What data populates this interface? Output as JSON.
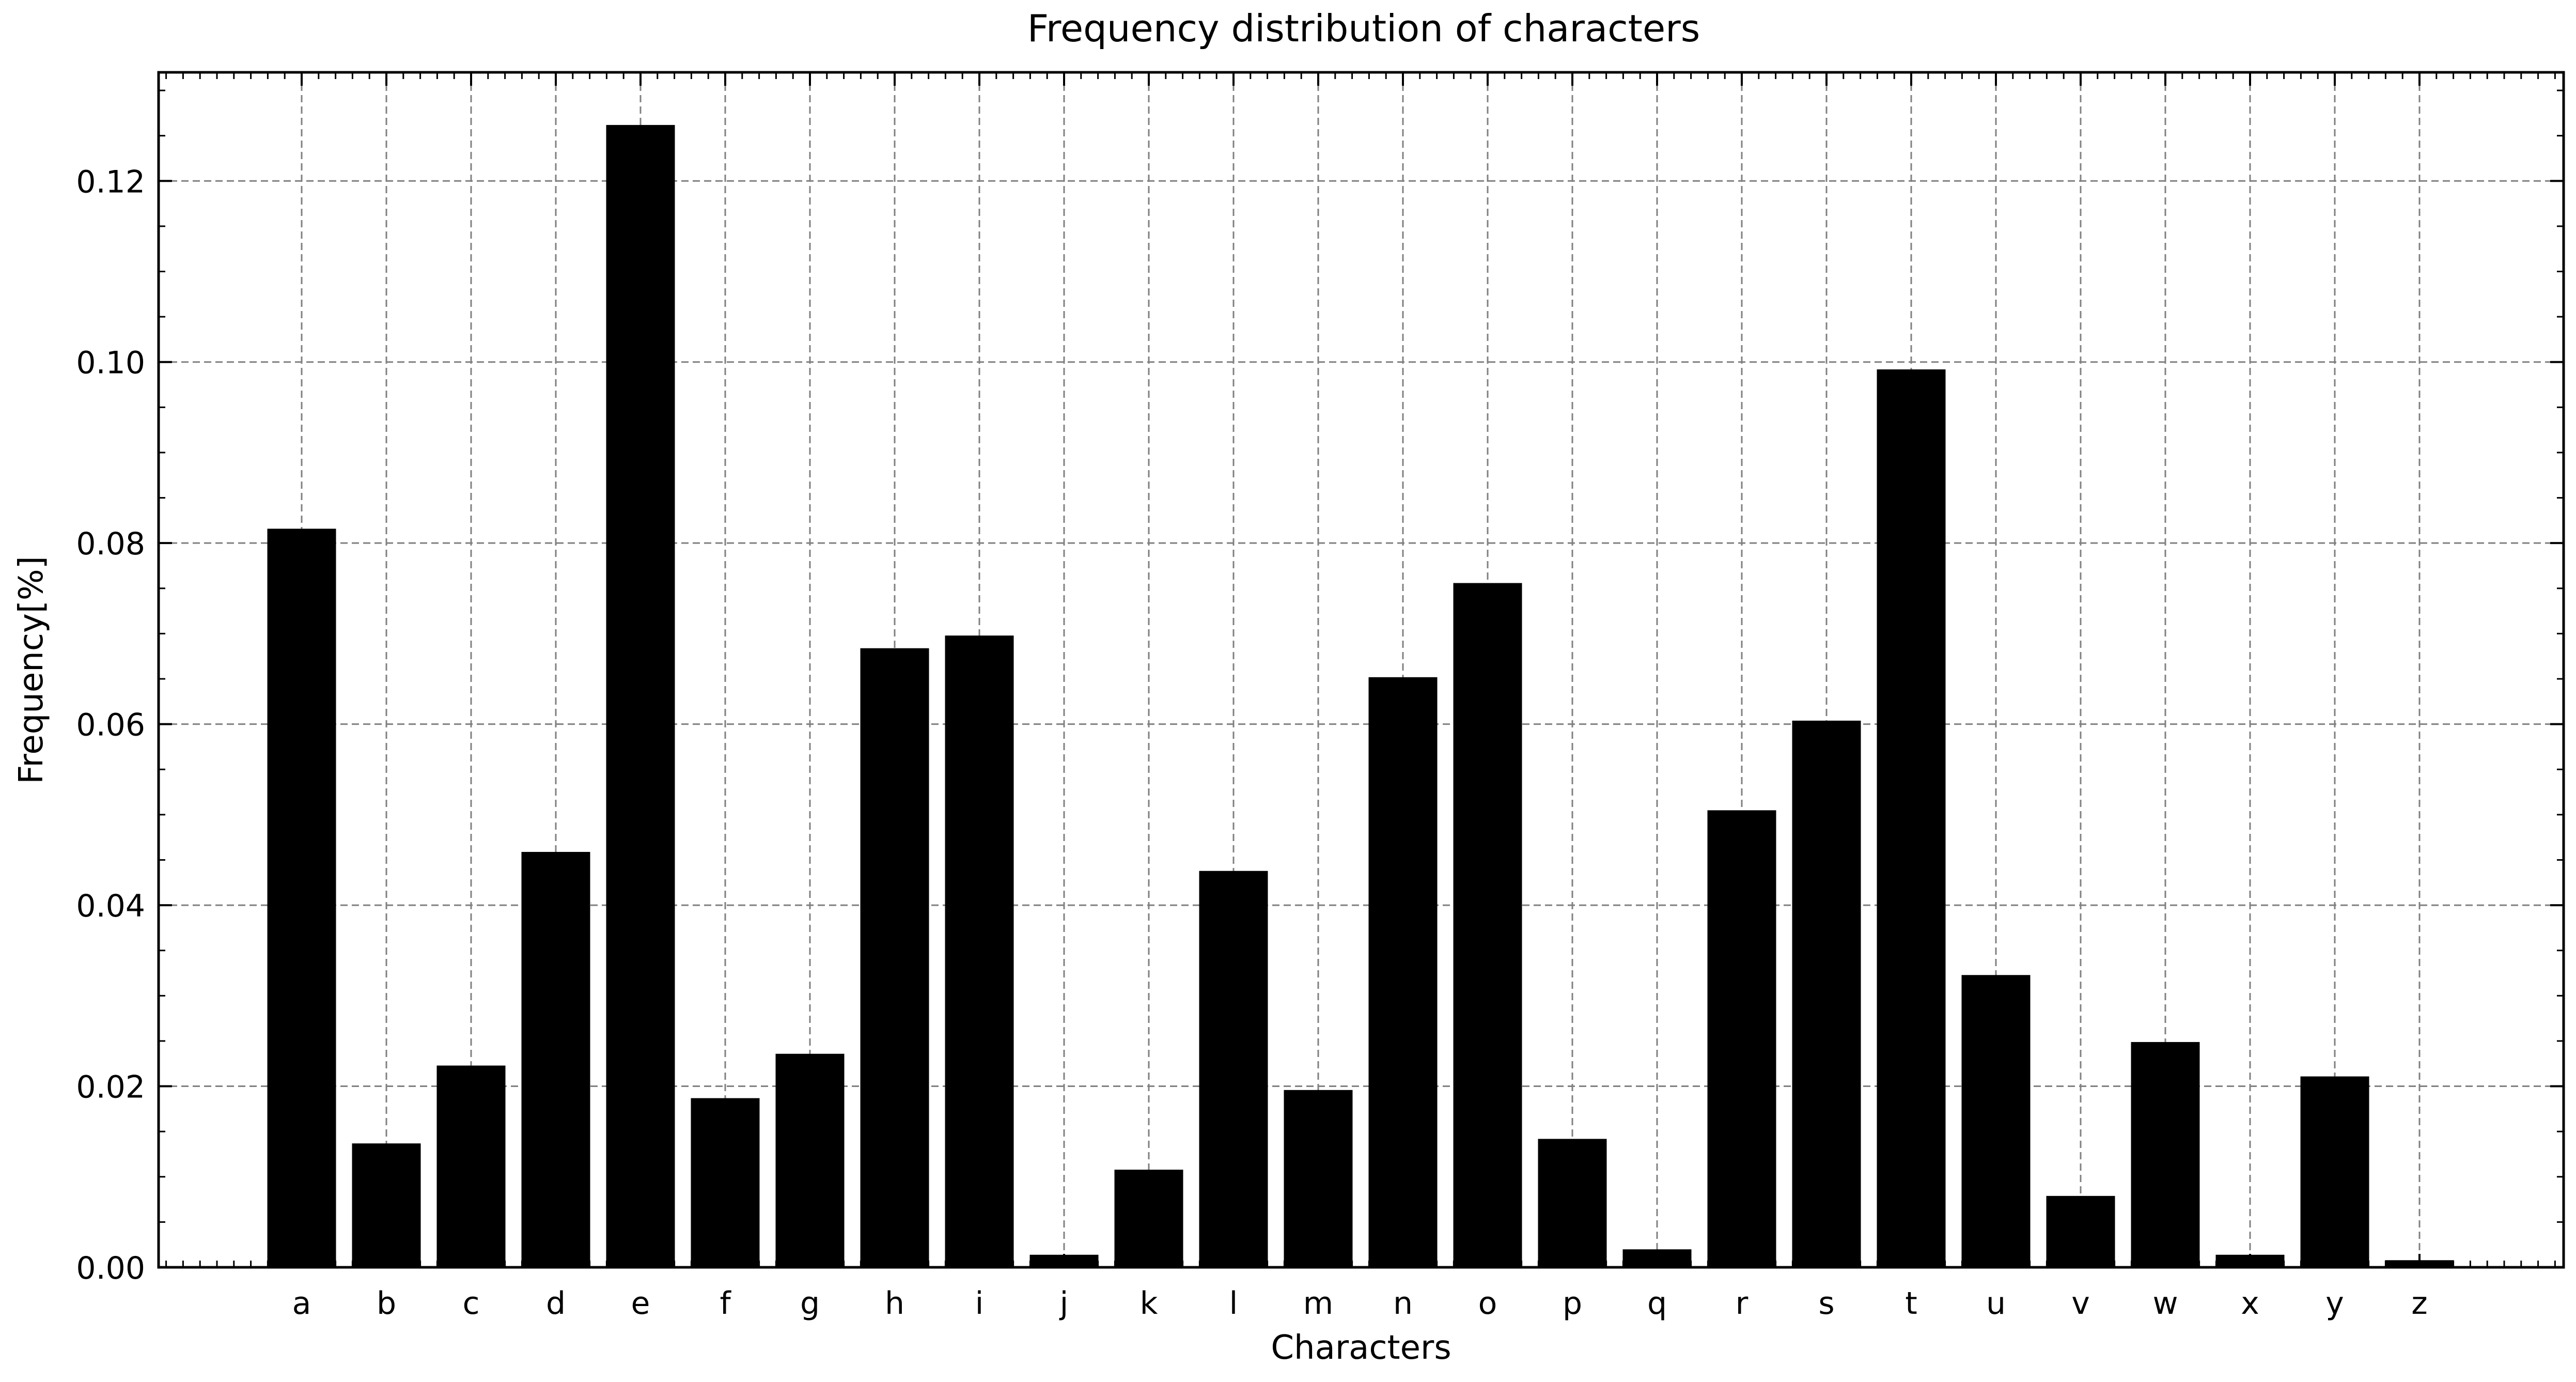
{
  "chart_data": {
    "type": "bar",
    "title": "Frequency distribution of characters",
    "xlabel": "Characters",
    "ylabel": "Frequency[%]",
    "categories": [
      "a",
      "b",
      "c",
      "d",
      "e",
      "f",
      "g",
      "h",
      "i",
      "j",
      "k",
      "l",
      "m",
      "n",
      "o",
      "p",
      "q",
      "r",
      "s",
      "t",
      "u",
      "v",
      "w",
      "x",
      "y",
      "z"
    ],
    "values": [
      0.0815,
      0.0136,
      0.0222,
      0.0458,
      0.1261,
      0.0186,
      0.0235,
      0.0683,
      0.0697,
      0.0013,
      0.0107,
      0.0437,
      0.0195,
      0.0651,
      0.0755,
      0.0141,
      0.0019,
      0.0504,
      0.0603,
      0.0991,
      0.0322,
      0.0078,
      0.0248,
      0.0013,
      0.021,
      0.0007
    ],
    "ylim": [
      0.0,
      0.132
    ],
    "yticks": [
      "0.00",
      "0.02",
      "0.04",
      "0.06",
      "0.08",
      "0.10",
      "0.12"
    ],
    "grid": true,
    "bar_color": "#000000",
    "grid_color": "#808080"
  }
}
